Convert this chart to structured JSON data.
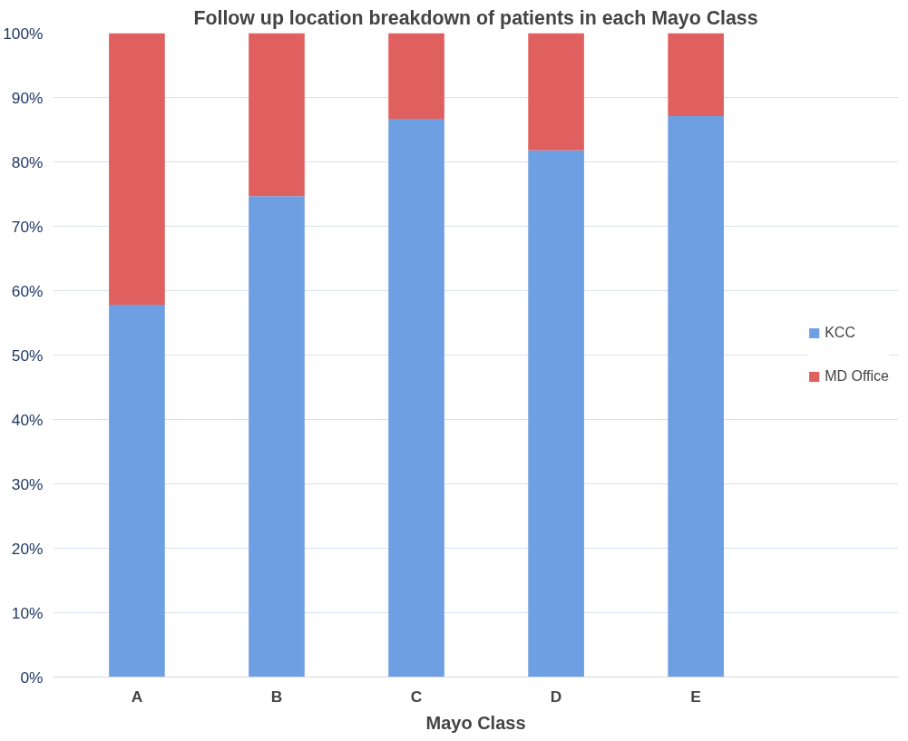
{
  "chart_data": {
    "type": "bar",
    "title": "Follow up location breakdown of patients in each Mayo Class",
    "xlabel": "Mayo Class",
    "categories": [
      "A",
      "B",
      "C",
      "D",
      "E"
    ],
    "stacked": true,
    "series": [
      {
        "name": "KCC",
        "color": "#6f9fe3",
        "values": [
          57.8,
          74.7,
          86.7,
          81.8,
          87.1
        ]
      },
      {
        "name": "MD Office",
        "color": "#e0605f",
        "values": [
          42.2,
          25.3,
          13.3,
          18.2,
          12.9
        ]
      }
    ],
    "ylim": [
      0,
      100
    ],
    "yticks": [
      {
        "value": 0,
        "label": "0%"
      },
      {
        "value": 10,
        "label": "10%"
      },
      {
        "value": 20,
        "label": "20%"
      },
      {
        "value": 30,
        "label": "30%"
      },
      {
        "value": 40,
        "label": "40%"
      },
      {
        "value": 50,
        "label": "50%"
      },
      {
        "value": 60,
        "label": "60%"
      },
      {
        "value": 70,
        "label": "70%"
      },
      {
        "value": 80,
        "label": "80%"
      },
      {
        "value": 90,
        "label": "90%"
      },
      {
        "value": 100,
        "label": "100%"
      }
    ],
    "grid": "y",
    "legend": "right"
  }
}
